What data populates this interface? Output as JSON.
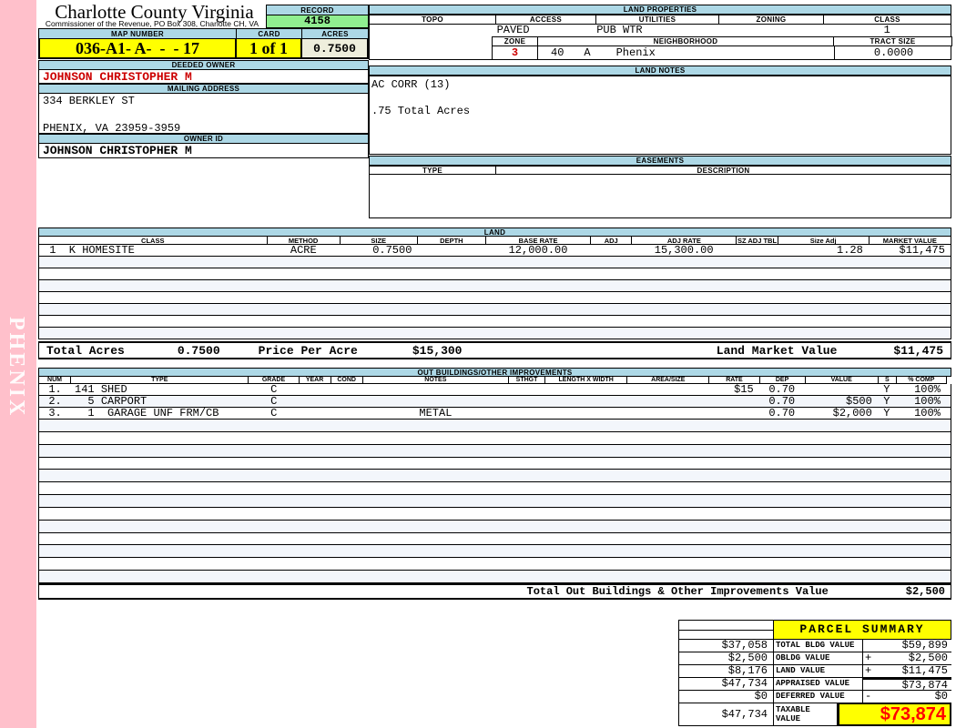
{
  "page": {
    "watermark": "PHENIX"
  },
  "header": {
    "title": "Charlotte County Virginia",
    "subtitle": "Commissioner of the Revenue, PO Box 308, Charlotte CH, VA",
    "record": {
      "label": "RECORD",
      "value": "4158"
    },
    "map_number": {
      "label": "MAP NUMBER",
      "value": "036-A1- A-  -  - 17"
    },
    "card": {
      "label": "CARD",
      "value": "1 of 1"
    },
    "acres": {
      "label": "ACRES",
      "value": "0.7500"
    }
  },
  "owner": {
    "deeded_owner_label": "DEEDED OWNER",
    "deeded_owner": "JOHNSON CHRISTOPHER M",
    "mailing_address_label": "MAILING ADDRESS",
    "address_line1": "334 BERKLEY ST",
    "address_line2": "PHENIX, VA 23959-3959",
    "owner_id_label": "OWNER ID",
    "owner_id": "JOHNSON CHRISTOPHER M"
  },
  "land_properties": {
    "title": "LAND PROPERTIES",
    "columns": [
      "TOPO",
      "ACCESS",
      "UTILITIES",
      "ZONING",
      "CLASS"
    ],
    "values": {
      "topo": "",
      "access": "PAVED",
      "utilities": "PUB WTR",
      "zoning": "",
      "class": "1"
    },
    "zone": {
      "label": "ZONE",
      "value": "3"
    },
    "neighborhood": {
      "label": "NEIGHBORHOOD",
      "code": "40",
      "sub": "A",
      "name": "Phenix"
    },
    "tract_size": {
      "label": "TRACT SIZE",
      "value": "0.0000"
    }
  },
  "land_notes": {
    "title": "LAND NOTES",
    "lines": [
      "AC CORR (13)",
      ".75 Total Acres"
    ]
  },
  "easements": {
    "title": "EASEMENTS",
    "columns": [
      "TYPE",
      "DESCRIPTION"
    ]
  },
  "land": {
    "title": "LAND",
    "columns": [
      "CLASS",
      "METHOD",
      "SIZE",
      "DEPTH",
      "BASE RATE",
      "ADJ",
      "ADJ RATE",
      "SZ ADJ TBL",
      "Size Adj",
      "MARKET VALUE"
    ],
    "rows": [
      {
        "class": " 1  K HOMESITE",
        "method": "ACRE",
        "size": "0.7500",
        "depth": "",
        "base_rate": "12,000.00",
        "adj": "",
        "adj_rate": "15,300.00",
        "sz_adj_tbl": "",
        "size_adj": "1.28",
        "market_value": "$11,475"
      }
    ],
    "totals": {
      "total_acres_label": "Total Acres",
      "total_acres": "0.7500",
      "price_per_acre_label": "Price Per Acre",
      "price_per_acre": "$15,300",
      "market_value_label": "Land Market Value",
      "market_value": "$11,475"
    }
  },
  "outbuildings": {
    "title": "OUT BUILDINGS/OTHER IMPROVEMENTS",
    "columns": [
      "NUM",
      "TYPE",
      "GRADE",
      "YEAR",
      "COND",
      "NOTES",
      "STHGT",
      "LENGTH X WIDTH",
      "AREA/SIZE",
      "RATE",
      "DEP",
      "VALUE",
      "S",
      "% COMP"
    ],
    "rows": [
      {
        "num": "1.",
        "type": "141 SHED",
        "grade": "C",
        "year": "",
        "cond": "",
        "notes": "",
        "sthgt": "",
        "lxw": "",
        "areasize": "",
        "rate": "$15",
        "dep": "0.70",
        "value": "",
        "s": "Y",
        "pct_comp": "100%"
      },
      {
        "num": "2.",
        "type": "  5 CARPORT",
        "grade": "C",
        "year": "",
        "cond": "",
        "notes": "",
        "sthgt": "",
        "lxw": "",
        "areasize": "",
        "rate": "",
        "dep": "0.70",
        "value": "$500",
        "s": "Y",
        "pct_comp": "100%"
      },
      {
        "num": "3.",
        "type": "  1  GARAGE UNF FRM/CB",
        "grade": "C",
        "year": "",
        "cond": "",
        "notes": "METAL",
        "sthgt": "",
        "lxw": "",
        "areasize": "",
        "rate": "",
        "dep": "0.70",
        "value": "$2,000",
        "s": "Y",
        "pct_comp": "100%"
      }
    ],
    "total_label": "Total Out Buildings & Other Improvements Value",
    "total_value": "$2,500"
  },
  "parcel_summary": {
    "title": "PARCEL SUMMARY",
    "rows": [
      {
        "prior": "$37,058",
        "label": "TOTAL BLDG VALUE",
        "op": "",
        "value": "$59,899"
      },
      {
        "prior": "$2,500",
        "label": "OBLDG VALUE",
        "op": "+",
        "value": "$2,500"
      },
      {
        "prior": "$8,176",
        "label": "LAND VALUE",
        "op": "+",
        "value": "$11,475"
      },
      {
        "prior": "$47,734",
        "label": "APPRAISED VALUE",
        "op": "",
        "value": "$73,874"
      },
      {
        "prior": "$0",
        "label": "DEFERRED VALUE",
        "op": "-",
        "value": "$0"
      }
    ],
    "taxable": {
      "prior": "$47,734",
      "label_line1": "TAXABLE",
      "label_line2": "VALUE",
      "value": "$73,874"
    }
  },
  "colors": {
    "pink": "#FFC0CB",
    "header_blue": "#ADD8E6",
    "record_green": "#90EE90",
    "highlight_yellow": "#FFFF00",
    "acres_cream": "#EEEEDC",
    "owner_red": "#CC0000",
    "taxable_red": "#FF0000"
  }
}
